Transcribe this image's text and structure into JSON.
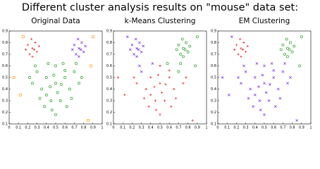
{
  "title": "Different cluster analysis results on \"mouse\" data set:",
  "chart_data": [
    {
      "type": "scatter",
      "title": "Original Data",
      "xlim": [
        0,
        1
      ],
      "ylim": [
        0.1,
        0.9
      ],
      "xticks": [
        0,
        0.1,
        0.2,
        0.3,
        0.4,
        0.5,
        0.6,
        0.7,
        0.8,
        0.9,
        1
      ],
      "yticks": [
        0.1,
        0.2,
        0.3,
        0.4,
        0.5,
        0.6,
        0.7,
        0.8,
        0.9
      ],
      "series": [
        {
          "color": "#2ca02c",
          "marker": "circle",
          "x": [
            0.5,
            0.4,
            0.6,
            0.35,
            0.65,
            0.45,
            0.55,
            0.3,
            0.7,
            0.5,
            0.42,
            0.58,
            0.25,
            0.75,
            0.38,
            0.62,
            0.5,
            0.44,
            0.56,
            0.48,
            0.33,
            0.67,
            0.28,
            0.72,
            0.52,
            0.46,
            0.6,
            0.4,
            0.78,
            0.22
          ],
          "values": [
            0.45,
            0.5,
            0.5,
            0.4,
            0.4,
            0.3,
            0.3,
            0.55,
            0.55,
            0.6,
            0.62,
            0.62,
            0.45,
            0.45,
            0.25,
            0.25,
            0.18,
            0.42,
            0.44,
            0.52,
            0.32,
            0.32,
            0.6,
            0.62,
            0.37,
            0.22,
            0.56,
            0.35,
            0.5,
            0.5
          ]
        },
        {
          "color": "#e41a1c",
          "marker": "plus",
          "x": [
            0.25,
            0.2,
            0.3,
            0.22,
            0.28,
            0.18,
            0.32,
            0.25,
            0.24,
            0.27
          ],
          "values": [
            0.75,
            0.78,
            0.72,
            0.7,
            0.8,
            0.74,
            0.77,
            0.68,
            0.83,
            0.74
          ]
        },
        {
          "color": "#7b2fe0",
          "marker": "cross",
          "x": [
            0.75,
            0.7,
            0.8,
            0.72,
            0.78,
            0.68,
            0.82,
            0.75,
            0.74,
            0.77
          ],
          "values": [
            0.75,
            0.78,
            0.72,
            0.7,
            0.8,
            0.74,
            0.77,
            0.68,
            0.83,
            0.74
          ]
        },
        {
          "color": "#ff9f1a",
          "marker": "square",
          "x": [
            0.05,
            0.15,
            0.9,
            0.85,
            0.12,
            0.88
          ],
          "values": [
            0.5,
            0.85,
            0.85,
            0.13,
            0.35,
            0.6
          ]
        }
      ]
    },
    {
      "type": "scatter",
      "title": "k-Means Clustering",
      "xlim": [
        0,
        1
      ],
      "ylim": [
        0.1,
        0.9
      ],
      "xticks": [
        0,
        0.1,
        0.2,
        0.3,
        0.4,
        0.5,
        0.6,
        0.7,
        0.8,
        0.9,
        1
      ],
      "yticks": [
        0.1,
        0.2,
        0.3,
        0.4,
        0.5,
        0.6,
        0.7,
        0.8,
        0.9
      ],
      "series": [
        {
          "color": "#7b2fe0",
          "marker": "cross",
          "x": [
            0.25,
            0.2,
            0.3,
            0.22,
            0.28,
            0.18,
            0.32,
            0.25,
            0.24,
            0.27,
            0.3,
            0.42,
            0.28,
            0.15
          ],
          "values": [
            0.75,
            0.78,
            0.72,
            0.7,
            0.8,
            0.74,
            0.77,
            0.68,
            0.83,
            0.74,
            0.55,
            0.62,
            0.6,
            0.85
          ]
        },
        {
          "color": "#2ca02c",
          "marker": "circle",
          "x": [
            0.75,
            0.7,
            0.8,
            0.72,
            0.78,
            0.68,
            0.82,
            0.75,
            0.74,
            0.77,
            0.7,
            0.58,
            0.72,
            0.9,
            0.88
          ],
          "values": [
            0.75,
            0.78,
            0.72,
            0.7,
            0.8,
            0.74,
            0.77,
            0.68,
            0.83,
            0.74,
            0.55,
            0.62,
            0.62,
            0.85,
            0.6
          ]
        },
        {
          "color": "#e41a1c",
          "marker": "plus",
          "x": [
            0.5,
            0.4,
            0.6,
            0.35,
            0.65,
            0.45,
            0.55,
            0.5,
            0.25,
            0.75,
            0.38,
            0.62,
            0.5,
            0.44,
            0.56,
            0.48,
            0.33,
            0.67,
            0.52,
            0.46,
            0.6,
            0.4,
            0.78,
            0.22,
            0.05,
            0.85,
            0.12
          ],
          "values": [
            0.45,
            0.5,
            0.5,
            0.4,
            0.4,
            0.3,
            0.3,
            0.6,
            0.45,
            0.45,
            0.25,
            0.25,
            0.18,
            0.42,
            0.44,
            0.52,
            0.32,
            0.32,
            0.37,
            0.22,
            0.56,
            0.35,
            0.5,
            0.5,
            0.5,
            0.13,
            0.35
          ]
        }
      ]
    },
    {
      "type": "scatter",
      "title": "EM Clustering",
      "xlim": [
        0,
        1
      ],
      "ylim": [
        0.1,
        0.9
      ],
      "xticks": [
        0,
        0.1,
        0.2,
        0.3,
        0.4,
        0.5,
        0.6,
        0.7,
        0.8,
        0.9,
        1
      ],
      "yticks": [
        0.1,
        0.2,
        0.3,
        0.4,
        0.5,
        0.6,
        0.7,
        0.8,
        0.9
      ],
      "series": [
        {
          "color": "#e41a1c",
          "marker": "plus",
          "x": [
            0.25,
            0.2,
            0.3,
            0.22,
            0.28,
            0.18,
            0.32,
            0.25,
            0.24,
            0.27
          ],
          "values": [
            0.75,
            0.78,
            0.72,
            0.7,
            0.8,
            0.74,
            0.77,
            0.68,
            0.83,
            0.74
          ]
        },
        {
          "color": "#2ca02c",
          "marker": "circle",
          "x": [
            0.75,
            0.7,
            0.8,
            0.72,
            0.78,
            0.68,
            0.82,
            0.75,
            0.74,
            0.77,
            0.9,
            0.88
          ],
          "values": [
            0.75,
            0.78,
            0.72,
            0.7,
            0.8,
            0.74,
            0.77,
            0.68,
            0.83,
            0.74,
            0.85,
            0.6
          ]
        },
        {
          "color": "#7b2fe0",
          "marker": "cross",
          "x": [
            0.5,
            0.4,
            0.6,
            0.35,
            0.65,
            0.45,
            0.55,
            0.3,
            0.7,
            0.5,
            0.42,
            0.58,
            0.25,
            0.75,
            0.38,
            0.62,
            0.5,
            0.44,
            0.56,
            0.48,
            0.33,
            0.67,
            0.28,
            0.72,
            0.52,
            0.46,
            0.6,
            0.4,
            0.78,
            0.22,
            0.05,
            0.15,
            0.85,
            0.12
          ],
          "values": [
            0.45,
            0.5,
            0.5,
            0.4,
            0.4,
            0.3,
            0.3,
            0.55,
            0.55,
            0.6,
            0.62,
            0.62,
            0.45,
            0.45,
            0.25,
            0.25,
            0.18,
            0.42,
            0.44,
            0.52,
            0.32,
            0.32,
            0.6,
            0.62,
            0.37,
            0.22,
            0.56,
            0.35,
            0.5,
            0.5,
            0.5,
            0.85,
            0.13,
            0.35
          ]
        }
      ]
    }
  ]
}
